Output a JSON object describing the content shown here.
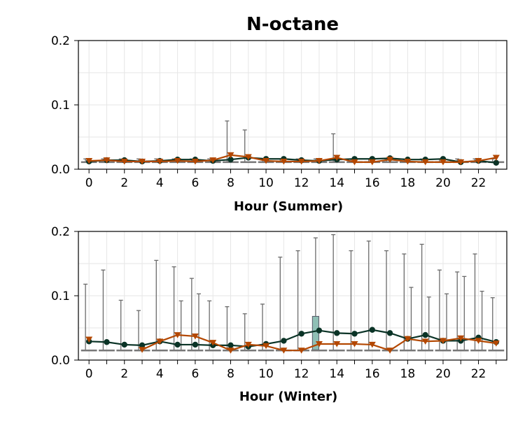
{
  "title": "N-octane",
  "colors": {
    "series_a": "#0a3326",
    "series_b": "#b34700",
    "box_fill": "#8fbfb5",
    "whisker": "#6b6b6b",
    "grid": "#e6e6e6"
  },
  "chart_data": [
    {
      "type": "line",
      "xlabel": "Hour (Summer)",
      "ylabel": "",
      "ylim": [
        0,
        0.2
      ],
      "xlim": [
        -0.6,
        23.6
      ],
      "yticks": [
        0.0,
        0.1,
        0.2
      ],
      "ytick_labels": [
        "0.0",
        "0.1",
        "0.2"
      ],
      "xticks": [
        0,
        2,
        4,
        6,
        8,
        10,
        12,
        14,
        16,
        18,
        20,
        22
      ],
      "xtick_labels": [
        "0",
        "2",
        "4",
        "6",
        "8",
        "10",
        "12",
        "14",
        "16",
        "18",
        "20",
        "22"
      ],
      "grid": true,
      "x": [
        0,
        1,
        2,
        3,
        4,
        5,
        6,
        7,
        8,
        9,
        10,
        11,
        12,
        13,
        14,
        15,
        16,
        17,
        18,
        19,
        20,
        21,
        22,
        23
      ],
      "series": [
        {
          "marker": "circle",
          "values": [
            0.012,
            0.014,
            0.014,
            0.012,
            0.013,
            0.015,
            0.015,
            0.013,
            0.015,
            0.018,
            0.016,
            0.016,
            0.014,
            0.013,
            0.015,
            0.016,
            0.016,
            0.017,
            0.015,
            0.015,
            0.016,
            0.011,
            0.013,
            0.01
          ]
        },
        {
          "marker": "triangle-down",
          "values": [
            0.013,
            0.014,
            0.012,
            0.012,
            0.012,
            0.013,
            0.012,
            0.014,
            0.022,
            0.019,
            0.013,
            0.012,
            0.012,
            0.013,
            0.018,
            0.011,
            0.011,
            0.015,
            0.012,
            0.011,
            0.011,
            0.011,
            0.013,
            0.018
          ]
        }
      ],
      "whisker_max": [
        0.016,
        0.016,
        0.016,
        0.016,
        0.016,
        0.016,
        0.016,
        0.016,
        0.075,
        0.061,
        0.016,
        0.016,
        0.016,
        0.016,
        0.055,
        0.016,
        0.016,
        0.016,
        0.016,
        0.016,
        0.016,
        0.016,
        0.016,
        0.016
      ],
      "median": [
        0.011,
        0.011,
        0.011,
        0.011,
        0.011,
        0.011,
        0.011,
        0.011,
        0.011,
        0.011,
        0.011,
        0.011,
        0.011,
        0.011,
        0.011,
        0.011,
        0.011,
        0.011,
        0.011,
        0.011,
        0.011,
        0.011,
        0.011,
        0.011
      ],
      "boxes": []
    },
    {
      "type": "line",
      "xlabel": "Hour (Winter)",
      "ylabel": "",
      "ylim": [
        0,
        0.2
      ],
      "xlim": [
        -0.6,
        23.6
      ],
      "yticks": [
        0.0,
        0.1,
        0.2
      ],
      "ytick_labels": [
        "0.0",
        "0.1",
        "0.2"
      ],
      "xticks": [
        0,
        2,
        4,
        6,
        8,
        10,
        12,
        14,
        16,
        18,
        20,
        22
      ],
      "xtick_labels": [
        "0",
        "2",
        "4",
        "6",
        "8",
        "10",
        "12",
        "14",
        "16",
        "18",
        "20",
        "22"
      ],
      "grid": true,
      "x": [
        0,
        1,
        2,
        3,
        4,
        5,
        6,
        7,
        8,
        9,
        10,
        11,
        12,
        13,
        14,
        15,
        16,
        17,
        18,
        19,
        20,
        21,
        22,
        23
      ],
      "series": [
        {
          "marker": "circle",
          "values": [
            0.029,
            0.028,
            0.024,
            0.023,
            0.029,
            0.024,
            0.024,
            0.023,
            0.023,
            0.021,
            0.025,
            0.03,
            0.041,
            0.046,
            0.042,
            0.041,
            0.047,
            0.042,
            0.033,
            0.039,
            0.03,
            0.03,
            0.035,
            0.028
          ]
        },
        {
          "marker": "triangle-down",
          "values": [
            0.032,
            null,
            null,
            0.016,
            0.029,
            0.039,
            0.037,
            0.027,
            0.015,
            0.024,
            0.022,
            0.015,
            0.015,
            0.025,
            0.025,
            0.025,
            0.024,
            0.015,
            0.033,
            0.029,
            0.03,
            0.034,
            0.03,
            0.026
          ]
        }
      ],
      "whisker_max": [
        0.118,
        0.14,
        0.093,
        0.077,
        0.155,
        0.145,
        0.127,
        0.092,
        0.083,
        0.072,
        0.087,
        0.16,
        0.17,
        0.19,
        0.195,
        0.17,
        0.185,
        0.17,
        0.165,
        0.18,
        0.14,
        0.137,
        0.165,
        0.097
      ],
      "whisker_max_b": [
        null,
        null,
        null,
        null,
        null,
        0.092,
        0.103,
        null,
        null,
        null,
        null,
        null,
        null,
        null,
        null,
        null,
        null,
        null,
        0.113,
        0.098,
        0.103,
        0.13,
        0.107,
        null
      ],
      "median": [
        0.015,
        0.015,
        0.015,
        0.015,
        0.015,
        0.015,
        0.015,
        0.015,
        0.015,
        0.015,
        0.015,
        0.015,
        0.015,
        0.015,
        0.015,
        0.015,
        0.015,
        0.015,
        0.015,
        0.015,
        0.015,
        0.015,
        0.015,
        0.015
      ],
      "boxes": [
        {
          "x": 12.8,
          "low": 0.016,
          "high": 0.068
        }
      ]
    }
  ]
}
